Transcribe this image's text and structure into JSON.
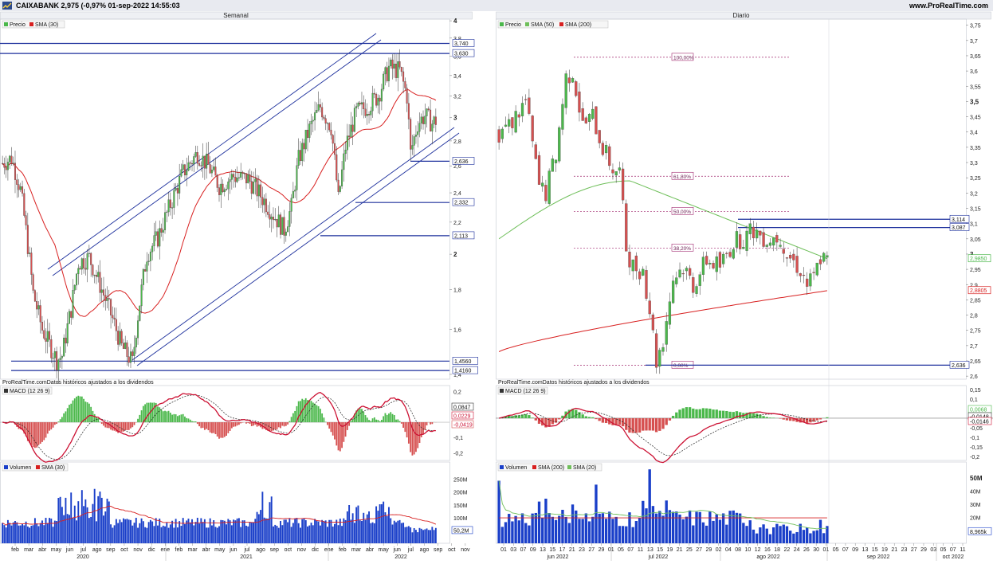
{
  "header": {
    "title": "CAIXABANK 2,975 (-0,97% 01-sep-2022 14:55:03",
    "site": "www.ProRealTime.com"
  },
  "colors": {
    "up": "#4bb84b",
    "down": "#d65050",
    "line_blue": "#1c2f9c",
    "sma_red": "#d82020",
    "sma_green": "#6fbf5a",
    "volume": "#1a3fc9",
    "macd_line": "#cc1133",
    "signal_line": "#222222"
  },
  "chart_data": [
    {
      "id": "weekly",
      "title": "Semanal",
      "type": "candlestick",
      "legend": [
        {
          "label": "Precio",
          "color": "#4bb84b"
        },
        {
          "label": "SMA (30)",
          "color": "#d82020"
        }
      ],
      "y_ticks": [
        "4",
        "3,8",
        "3,6",
        "3,4",
        "3,2",
        "3",
        "2,8",
        "2,6",
        "2,4",
        "2,2",
        "2",
        "1,8",
        "1,6",
        "1,4"
      ],
      "y_ticks_bold": [
        "4",
        "3",
        "2"
      ],
      "ylim": [
        1.38,
        4.02
      ],
      "log_scale": true,
      "levels": [
        {
          "value": 3.74,
          "label": "3,740"
        },
        {
          "value": 3.63,
          "label": "3,630"
        },
        {
          "value": 2.636,
          "label": "2,636"
        },
        {
          "value": 2.332,
          "label": "2,332"
        },
        {
          "value": 2.113,
          "label": "2,113"
        },
        {
          "value": 1.456,
          "label": "1,4560"
        },
        {
          "value": 1.416,
          "label": "1,4160"
        }
      ],
      "x_ticks": [
        "feb",
        "mar",
        "abr",
        "may",
        "jun",
        "jul",
        "ago",
        "sep",
        "oct",
        "nov",
        "dic",
        "ene",
        "feb",
        "mar",
        "abr",
        "may",
        "jun",
        "jul",
        "ago",
        "sep",
        "oct",
        "nov",
        "dic",
        "ene",
        "feb",
        "mar",
        "abr",
        "may",
        "jun",
        "jul",
        "ago",
        "sep",
        "oct",
        "nov"
      ],
      "x_years": [
        "2020",
        "2021",
        "2022"
      ],
      "macd": {
        "source_note": "ProRealTime.comDatos históricos ajustados a los dividendos",
        "legend": "MACD (12 26 9)",
        "ticks": [
          "0,2",
          "0,1",
          "-0,1",
          "-0,2"
        ],
        "labels": [
          "0,0847",
          "0,0229",
          "-0,0419"
        ]
      },
      "volume": {
        "legend": [
          {
            "label": "Volumen",
            "color": "#1a3fc9"
          },
          {
            "label": "SMA (30)",
            "color": "#d82020"
          }
        ],
        "ticks": [
          "250M",
          "200M",
          "150M",
          "100M",
          "50M"
        ],
        "last_label": "50,2M"
      }
    },
    {
      "id": "daily",
      "title": "Diario",
      "type": "candlestick",
      "legend": [
        {
          "label": "Precio",
          "color": "#4bb84b"
        },
        {
          "label": "SMA (50)",
          "color": "#6fbf5a"
        },
        {
          "label": "SMA (200)",
          "color": "#d82020"
        }
      ],
      "y_ticks": [
        "3,75",
        "3,7",
        "3,65",
        "3,6",
        "3,55",
        "3,5",
        "3,45",
        "3,4",
        "3,35",
        "3,3",
        "3,25",
        "3,2",
        "3,15",
        "3,1",
        "3,05",
        "3",
        "2,95",
        "2,9",
        "2,85",
        "2,8",
        "2,75",
        "2,7",
        "2,65",
        "2,6"
      ],
      "y_ticks_bold": [
        "3,5",
        "3"
      ],
      "ylim": [
        2.59,
        3.77
      ],
      "levels": [
        {
          "value": 3.114,
          "label": "3,114"
        },
        {
          "value": 3.087,
          "label": "3,087"
        },
        {
          "value": 2.636,
          "label": "2,636"
        }
      ],
      "fibonacci": [
        {
          "value": 3.645,
          "label": "100,00%"
        },
        {
          "value": 3.255,
          "label": "61,80%"
        },
        {
          "value": 3.14,
          "label": "50,00%"
        },
        {
          "value": 3.02,
          "label": "38,20%"
        },
        {
          "value": 2.636,
          "label": "0,00%"
        }
      ],
      "value_labels": [
        {
          "value": 2.985,
          "label": "2,9850",
          "color": "#4bb84b"
        },
        {
          "value": 2.8805,
          "label": "2,8805",
          "color": "#d82020"
        }
      ],
      "x_ticks": [
        "01",
        "03",
        "07",
        "09",
        "13",
        "15",
        "17",
        "21",
        "23",
        "27",
        "29",
        "01",
        "05",
        "07",
        "11",
        "13",
        "15",
        "19",
        "21",
        "25",
        "27",
        "29",
        "02",
        "04",
        "08",
        "10",
        "12",
        "16",
        "18",
        "22",
        "24",
        "26",
        "30",
        "01",
        "05",
        "07",
        "09",
        "13",
        "15",
        "19",
        "21",
        "23",
        "27",
        "29",
        "03",
        "05",
        "07",
        "11"
      ],
      "x_months": [
        "jun 2022",
        "jul 2022",
        "ago 2022",
        "sep 2022",
        "oct 2022"
      ],
      "macd": {
        "source_note": "ProRealTime.comDatos históricos ajustados a los dividendos",
        "legend": "MACD (12 26 9)",
        "ticks": [
          "0,15",
          "0,1",
          "0,05",
          "-0,05",
          "-0,1",
          "-0,15",
          "-0,2"
        ],
        "labels": [
          "0,0068",
          "-0,0148",
          "-0,0146"
        ]
      },
      "volume": {
        "legend": [
          {
            "label": "Volumen",
            "color": "#1a3fc9"
          },
          {
            "label": "SMA (200)",
            "color": "#d82020"
          },
          {
            "label": "SMA (20)",
            "color": "#6fbf5a"
          }
        ],
        "ticks": [
          "50M",
          "40M",
          "30M",
          "20M",
          "10M"
        ],
        "ticks_bold": [
          "50M"
        ],
        "last_label": "8,965k"
      }
    }
  ]
}
